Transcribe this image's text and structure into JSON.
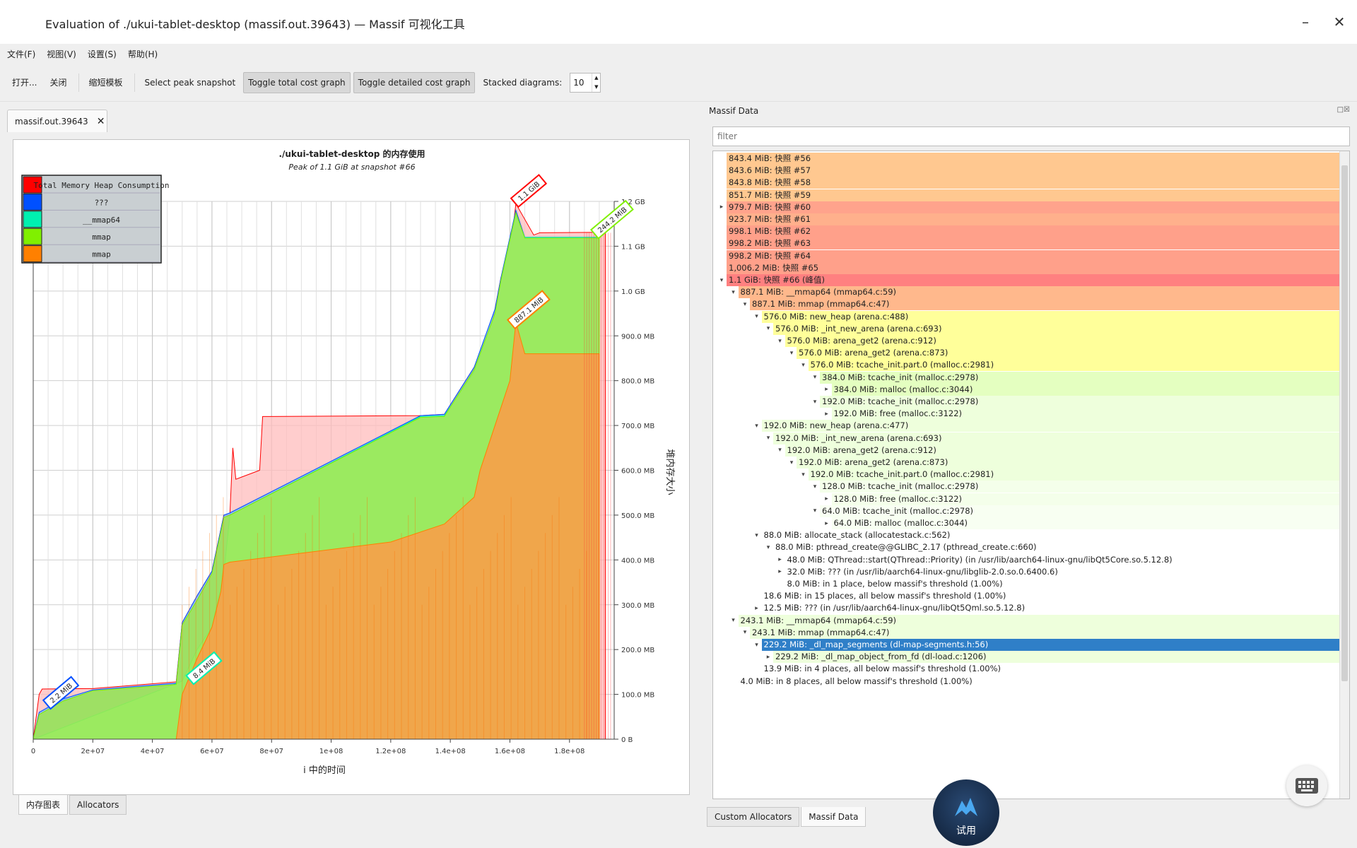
{
  "window": {
    "title": "Evaluation of ./ukui-tablet-desktop (massif.out.39643) — Massif 可视化工具"
  },
  "menu": [
    "文件(F)",
    "视图(V)",
    "设置(S)",
    "帮助(H)"
  ],
  "toolbar": {
    "open": "打开...",
    "close": "关闭",
    "shorten_templates": "缩短模板",
    "select_peak": "Select peak snapshot",
    "toggle_total": "Toggle total cost graph",
    "toggle_detailed": "Toggle detailed cost graph",
    "stacked_label": "Stacked diagrams:",
    "stacked_value": "10"
  },
  "document_tab": "massif.out.39643",
  "left_tabs": [
    "内存图表",
    "Allocators"
  ],
  "right_panel": {
    "title": "Massif Data",
    "filter_placeholder": "filter",
    "tabs": [
      "Custom Allocators",
      "Massif Data"
    ]
  },
  "try_badge": "试用",
  "chart_data": {
    "type": "area",
    "title": "./ukui-tablet-desktop 的内存使用",
    "subtitle": "Peak of 1.1 GiB at snapshot #66",
    "xlabel": "i 中的时间",
    "ylabel": "堆内存大小",
    "x_ticks": [
      "0",
      "2e+07",
      "4e+07",
      "6e+07",
      "8e+07",
      "1e+08",
      "1.2e+08",
      "1.4e+08",
      "1.6e+08",
      "1.8e+08"
    ],
    "y_ticks": [
      "0 B",
      "100.0 MB",
      "200.0 MB",
      "300.0 MB",
      "400.0 MB",
      "500.0 MB",
      "600.0 MB",
      "700.0 MB",
      "800.0 MB",
      "900.0 MB",
      "1.0 GB",
      "1.1 GB",
      "1.2 GB"
    ],
    "xlim": [
      0,
      195000000
    ],
    "ylim": [
      0,
      1200
    ],
    "legend": {
      "position": "top-left",
      "entries": [
        {
          "label": "Total Memory Heap Consumption",
          "color": "#ff0000"
        },
        {
          "label": "???",
          "color": "#0050ff"
        },
        {
          "label": "__mmap64",
          "color": "#00f0b0"
        },
        {
          "label": "mmap",
          "color": "#80f000"
        },
        {
          "label": "mmap",
          "color": "#ff8000"
        }
      ]
    },
    "series": [
      {
        "name": "Total Memory Heap Consumption",
        "color": "#ff0000",
        "x": [
          0,
          2000000,
          3000000,
          20000000,
          48000000,
          50000000,
          55000000,
          60000000,
          64000000,
          66000000,
          67000000,
          68000000,
          70000000,
          76000000,
          77000000,
          130000000,
          138000000,
          148000000,
          150000000,
          152000000,
          155000000,
          157000000,
          160000000,
          162000000,
          168000000,
          170000000,
          190000000,
          192000000
        ],
        "y": [
          0,
          100,
          112,
          113,
          128,
          260,
          320,
          375,
          500,
          500,
          650,
          580,
          585,
          600,
          720,
          722,
          725,
          830,
          855,
          870,
          960,
          1030,
          1080,
          1195,
          1125,
          1130,
          1131,
          1131
        ]
      },
      {
        "name": "???",
        "color": "#0050ff",
        "x": [
          0,
          2000000,
          10000000,
          20000000,
          48000000,
          50000000,
          55000000,
          60000000,
          64000000,
          66000000,
          130000000,
          138000000,
          148000000,
          155000000,
          157000000,
          162000000,
          165000000,
          190000000
        ],
        "y": [
          0,
          60,
          90,
          110,
          125,
          260,
          320,
          375,
          500,
          505,
          722,
          725,
          830,
          960,
          1030,
          1180,
          1120,
          1120
        ]
      },
      {
        "name": "__mmap64",
        "color": "#00f0b0",
        "x": [
          0,
          48000000,
          50000000,
          55000000,
          60000000,
          64000000,
          66000000,
          130000000,
          138000000,
          148000000,
          155000000,
          157000000,
          162000000,
          165000000,
          190000000
        ],
        "y": [
          0,
          124,
          130,
          200,
          250,
          370,
          500,
          720,
          722,
          820,
          950,
          1020,
          1170,
          1120,
          1120
        ]
      },
      {
        "name": "mmap",
        "color": "#80f000",
        "x": [
          0,
          2000000,
          10000000,
          20000000,
          48000000,
          50000000,
          55000000,
          60000000,
          64000000,
          66000000,
          130000000,
          138000000,
          148000000,
          155000000,
          157000000,
          162000000,
          165000000,
          190000000
        ],
        "y": [
          0,
          55,
          85,
          108,
          122,
          255,
          310,
          370,
          495,
          500,
          718,
          720,
          825,
          950,
          1025,
          1175,
          1118,
          1118
        ]
      },
      {
        "name": "mmap",
        "color": "#ff8000",
        "x": [
          0,
          48000000,
          50000000,
          55000000,
          60000000,
          63000000,
          64000000,
          66000000,
          120000000,
          138000000,
          148000000,
          150000000,
          155000000,
          160000000,
          162000000,
          165000000,
          190000000
        ],
        "y": [
          0,
          0,
          100,
          180,
          250,
          330,
          390,
          395,
          440,
          480,
          540,
          600,
          700,
          800,
          930,
          860,
          860
        ]
      }
    ],
    "annotations": [
      {
        "text": "1.1 GiB",
        "x": 162000000,
        "y": 1195,
        "color": "#ff0000"
      },
      {
        "text": "244.2 MiB",
        "x": 190000000,
        "y": 1131,
        "color": "#80f000"
      },
      {
        "text": "887.1 MiB",
        "x": 162000000,
        "y": 930,
        "color": "#ff8000"
      },
      {
        "text": "8.4 MiB",
        "x": 53000000,
        "y": 130,
        "color": "#00f0b0"
      },
      {
        "text": "2.2 MiB",
        "x": 5000000,
        "y": 75,
        "color": "#0050ff"
      }
    ]
  },
  "tree": [
    {
      "d": 0,
      "text": "843.4 MiB:  快照 #56",
      "bg": "#ffc890",
      "arrow": ""
    },
    {
      "d": 0,
      "text": "843.6 MiB:  快照 #57",
      "bg": "#ffc890",
      "arrow": ""
    },
    {
      "d": 0,
      "text": "843.8 MiB:  快照 #58",
      "bg": "#ffc890",
      "arrow": ""
    },
    {
      "d": 0,
      "text": "851.7 MiB:  快照 #59",
      "bg": "#ffc890",
      "arrow": ""
    },
    {
      "d": 0,
      "text": "979.7 MiB:  快照 #60",
      "bg": "#ffa38c",
      "arrow": "▸"
    },
    {
      "d": 0,
      "text": "923.7 MiB:  快照 #61",
      "bg": "#ffb08c",
      "arrow": ""
    },
    {
      "d": 0,
      "text": "998.1 MiB:  快照 #62",
      "bg": "#ffa08a",
      "arrow": ""
    },
    {
      "d": 0,
      "text": "998.2 MiB:  快照 #63",
      "bg": "#ffa08a",
      "arrow": ""
    },
    {
      "d": 0,
      "text": "998.2 MiB:  快照 #64",
      "bg": "#ffa08a",
      "arrow": ""
    },
    {
      "d": 0,
      "text": "1,006.2 MiB:  快照 #65",
      "bg": "#ffa08a",
      "arrow": ""
    },
    {
      "d": 0,
      "text": "1.1 GiB:  快照 #66 (峰值)",
      "bg": "#ff8080",
      "arrow": "▾"
    },
    {
      "d": 1,
      "text": "887.1 MiB:  __mmap64 (mmap64.c:59)",
      "bg": "#ffb88c",
      "arrow": "▾"
    },
    {
      "d": 2,
      "text": "887.1 MiB:  mmap (mmap64.c:47)",
      "bg": "#ffb88c",
      "arrow": "▾"
    },
    {
      "d": 3,
      "text": "576.0 MiB:  new_heap (arena.c:488)",
      "bg": "#ffff9a",
      "arrow": "▾"
    },
    {
      "d": 4,
      "text": "576.0 MiB:  _int_new_arena (arena.c:693)",
      "bg": "#ffff9a",
      "arrow": "▾"
    },
    {
      "d": 5,
      "text": "576.0 MiB:  arena_get2 (arena.c:912)",
      "bg": "#ffff9a",
      "arrow": "▾"
    },
    {
      "d": 6,
      "text": "576.0 MiB:  arena_get2 (arena.c:873)",
      "bg": "#ffff9a",
      "arrow": "▾"
    },
    {
      "d": 7,
      "text": "576.0 MiB:  tcache_init.part.0 (malloc.c:2981)",
      "bg": "#ffff9a",
      "arrow": "▾"
    },
    {
      "d": 8,
      "text": "384.0 MiB:  tcache_init (malloc.c:2978)",
      "bg": "#e4ffc0",
      "arrow": "▾"
    },
    {
      "d": 9,
      "text": "384.0 MiB:  malloc (malloc.c:3044)",
      "bg": "#e4ffc0",
      "arrow": "▸"
    },
    {
      "d": 8,
      "text": "192.0 MiB:  tcache_init (malloc.c:2978)",
      "bg": "#eeffdc",
      "arrow": "▾"
    },
    {
      "d": 9,
      "text": "192.0 MiB:  free (malloc.c:3122)",
      "bg": "#eeffdc",
      "arrow": "▸"
    },
    {
      "d": 3,
      "text": "192.0 MiB:  new_heap (arena.c:477)",
      "bg": "#eeffdc",
      "arrow": "▾"
    },
    {
      "d": 4,
      "text": "192.0 MiB:  _int_new_arena (arena.c:693)",
      "bg": "#eeffdc",
      "arrow": "▾"
    },
    {
      "d": 5,
      "text": "192.0 MiB:  arena_get2 (arena.c:912)",
      "bg": "#eeffdc",
      "arrow": "▾"
    },
    {
      "d": 6,
      "text": "192.0 MiB:  arena_get2 (arena.c:873)",
      "bg": "#eeffdc",
      "arrow": "▾"
    },
    {
      "d": 7,
      "text": "192.0 MiB:  tcache_init.part.0 (malloc.c:2981)",
      "bg": "#eeffdc",
      "arrow": "▾"
    },
    {
      "d": 8,
      "text": "128.0 MiB:  tcache_init (malloc.c:2978)",
      "bg": "#f4ffea",
      "arrow": "▾"
    },
    {
      "d": 9,
      "text": "128.0 MiB:  free (malloc.c:3122)",
      "bg": "#f4ffea",
      "arrow": "▸"
    },
    {
      "d": 8,
      "text": "64.0 MiB:  tcache_init (malloc.c:2978)",
      "bg": "#f8fff2",
      "arrow": "▾"
    },
    {
      "d": 9,
      "text": "64.0 MiB:  malloc (malloc.c:3044)",
      "bg": "#f8fff2",
      "arrow": "▸"
    },
    {
      "d": 3,
      "text": "88.0 MiB:  allocate_stack (allocatestack.c:562)",
      "bg": "#ffffff",
      "arrow": "▾"
    },
    {
      "d": 4,
      "text": "88.0 MiB:  pthread_create@@GLIBC_2.17 (pthread_create.c:660)",
      "bg": "#ffffff",
      "arrow": "▾"
    },
    {
      "d": 5,
      "text": "48.0 MiB:  QThread::start(QThread::Priority) (in /usr/lib/aarch64-linux-gnu/libQt5Core.so.5.12.8)",
      "bg": "#ffffff",
      "arrow": "▸"
    },
    {
      "d": 5,
      "text": "32.0 MiB:  ??? (in /usr/lib/aarch64-linux-gnu/libglib-2.0.so.0.6400.6)",
      "bg": "#ffffff",
      "arrow": "▸"
    },
    {
      "d": 5,
      "text": "8.0 MiB:  in 1 place, below massif's threshold (1.00%)",
      "bg": "#ffffff",
      "arrow": ""
    },
    {
      "d": 3,
      "text": "18.6 MiB:  in 15 places, all below massif's threshold (1.00%)",
      "bg": "#ffffff",
      "arrow": ""
    },
    {
      "d": 3,
      "text": "12.5 MiB:  ??? (in /usr/lib/aarch64-linux-gnu/libQt5Qml.so.5.12.8)",
      "bg": "#ffffff",
      "arrow": "▸"
    },
    {
      "d": 1,
      "text": "243.1 MiB:  __mmap64 (mmap64.c:59)",
      "bg": "#eeffdc",
      "arrow": "▾"
    },
    {
      "d": 2,
      "text": "243.1 MiB:  mmap (mmap64.c:47)",
      "bg": "#eeffdc",
      "arrow": "▾"
    },
    {
      "d": 3,
      "text": "229.2 MiB:  _dl_map_segments (dl-map-segments.h:56)",
      "bg": "#2f7fc8",
      "arrow": "▾",
      "selected": true
    },
    {
      "d": 4,
      "text": "229.2 MiB:  _dl_map_object_from_fd (dl-load.c:1206)",
      "bg": "#eeffdc",
      "arrow": "▸"
    },
    {
      "d": 3,
      "text": "13.9 MiB:  in 4 places, all below massif's threshold (1.00%)",
      "bg": "#ffffff",
      "arrow": ""
    },
    {
      "d": 1,
      "text": "4.0 MiB:  in 8 places, all below massif's threshold (1.00%)",
      "bg": "#ffffff",
      "arrow": ""
    }
  ]
}
